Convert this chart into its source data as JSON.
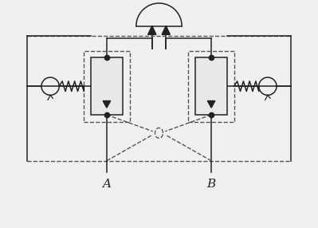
{
  "bg": "#f0f0f0",
  "lc": "#222222",
  "dc": "#555555",
  "lw": 1.1,
  "dlw": 1.0,
  "label_A": "A",
  "label_B": "B",
  "fig_w": 3.99,
  "fig_h": 2.86,
  "xmin": 0,
  "xmax": 10,
  "ymin": 0,
  "ymax": 7.15
}
